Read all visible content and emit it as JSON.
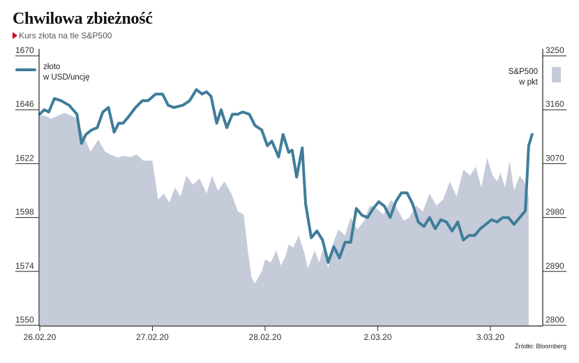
{
  "header": {
    "title": "Chwilowa zbieżność",
    "subtitle": "Kurs złota na tle S&P500"
  },
  "source": "Źródło: Bloomberg",
  "colors": {
    "gold_line": "#3f7d99",
    "sp500_area": "#c5cbd9",
    "subtitle_marker": "#d0021b"
  },
  "chart_data": {
    "type": "line",
    "title": "Chwilowa zbieżność",
    "subtitle": "Kurs złota na tle S&P500",
    "x_tick_labels": [
      "26.02.20",
      "27.02.20",
      "28.02.20",
      "2.03.20",
      "3.03.20"
    ],
    "left_axis": {
      "label": "złoto w USD/uncję",
      "ylim": [
        1550,
        1670
      ],
      "ticks": [
        1550,
        1574,
        1598,
        1622,
        1646,
        1670
      ]
    },
    "right_axis": {
      "label": "S&P500 w pkt",
      "ylim": [
        2800,
        3250
      ],
      "ticks": [
        2800,
        2890,
        2980,
        3070,
        3160,
        3250
      ]
    },
    "legend": {
      "gold_line_label_1": "złoto",
      "gold_line_label_2": "w USD/uncję",
      "sp500_label_1": "S&P500",
      "sp500_label_2": "w pkt"
    },
    "series": [
      {
        "name": "złoto w USD/uncję",
        "type": "line",
        "axis": "left",
        "x_day_position": [
          0.0,
          0.04,
          0.08,
          0.13,
          0.19,
          0.26,
          0.33,
          0.37,
          0.41,
          0.46,
          0.51,
          0.56,
          0.61,
          0.66,
          0.7,
          0.74,
          0.79,
          0.85,
          0.91,
          0.96,
          1.03,
          1.09,
          1.14,
          1.19,
          1.27,
          1.33,
          1.39,
          1.44,
          1.48,
          1.52,
          1.57,
          1.61,
          1.66,
          1.71,
          1.76,
          1.8,
          1.86,
          1.91,
          1.97,
          2.02,
          2.06,
          2.12,
          2.16,
          2.21,
          2.24,
          2.28,
          2.33,
          2.36,
          2.41,
          2.46,
          2.51,
          2.56,
          2.61,
          2.66,
          2.71,
          2.76,
          2.81,
          2.86,
          2.91,
          2.96,
          3.01,
          3.06,
          3.11,
          3.16,
          3.21,
          3.26,
          3.31,
          3.36,
          3.41,
          3.46,
          3.51,
          3.56,
          3.61,
          3.66,
          3.71,
          3.76,
          3.81,
          3.86,
          3.91,
          3.96,
          4.01,
          4.06,
          4.11,
          4.16,
          4.21,
          4.26,
          4.31,
          4.34,
          4.37
        ],
        "values": [
          1644,
          1646,
          1645,
          1651,
          1650,
          1648,
          1644,
          1631,
          1635,
          1637,
          1638,
          1645,
          1647,
          1636,
          1640,
          1640,
          1643,
          1647,
          1650,
          1650,
          1653,
          1653,
          1648,
          1647,
          1648,
          1650,
          1655,
          1653,
          1654,
          1652,
          1640,
          1646,
          1638,
          1644,
          1644,
          1645,
          1644,
          1639,
          1637,
          1630,
          1632,
          1625,
          1635,
          1627,
          1628,
          1616,
          1629,
          1604,
          1589,
          1592,
          1588,
          1578,
          1585,
          1580,
          1587,
          1587,
          1602,
          1599,
          1598,
          1602,
          1605,
          1603,
          1598,
          1605,
          1609,
          1609,
          1604,
          1596,
          1594,
          1598,
          1593,
          1597,
          1596,
          1592,
          1596,
          1588,
          1590,
          1590,
          1593,
          1595,
          1597,
          1596,
          1598,
          1598,
          1595,
          1598,
          1601,
          1630,
          1635
        ]
      },
      {
        "name": "S&P500 w pkt",
        "type": "area",
        "axis": "right",
        "x_day_position": [
          0.0,
          0.05,
          0.1,
          0.16,
          0.22,
          0.28,
          0.33,
          0.38,
          0.45,
          0.52,
          0.58,
          0.63,
          0.69,
          0.75,
          0.8,
          0.86,
          0.92,
          1.0,
          1.05,
          1.1,
          1.15,
          1.2,
          1.25,
          1.3,
          1.36,
          1.42,
          1.48,
          1.53,
          1.58,
          1.64,
          1.7,
          1.76,
          1.81,
          1.85,
          1.88,
          1.91,
          1.94,
          1.97,
          2.0,
          2.05,
          2.1,
          2.14,
          2.18,
          2.21,
          2.25,
          2.3,
          2.35,
          2.38,
          2.41,
          2.44,
          2.48,
          2.52,
          2.56,
          2.6,
          2.65,
          2.71,
          2.76,
          2.82,
          2.88,
          2.93,
          2.99,
          3.05,
          3.12,
          3.17,
          3.23,
          3.28,
          3.34,
          3.4,
          3.46,
          3.52,
          3.58,
          3.64,
          3.7,
          3.76,
          3.82,
          3.87,
          3.92,
          3.97,
          4.02,
          4.06,
          4.09,
          4.13,
          4.17,
          4.21,
          4.26,
          4.3,
          4.34
        ],
        "values": [
          3150,
          3150,
          3145,
          3150,
          3155,
          3150,
          3145,
          3120,
          3090,
          3110,
          3090,
          3085,
          3080,
          3083,
          3081,
          3085,
          3075,
          3075,
          3010,
          3020,
          3005,
          3030,
          3015,
          3050,
          3035,
          3045,
          3020,
          3050,
          3025,
          3040,
          3020,
          2990,
          2985,
          2920,
          2880,
          2870,
          2880,
          2890,
          2910,
          2905,
          2925,
          2900,
          2915,
          2935,
          2930,
          2950,
          2920,
          2895,
          2910,
          2925,
          2905,
          2930,
          2895,
          2935,
          2960,
          2950,
          2980,
          2960,
          2975,
          3000,
          2995,
          2985,
          3010,
          2995,
          2975,
          2980,
          3000,
          2990,
          3020,
          3000,
          3010,
          3040,
          3015,
          3060,
          3050,
          3065,
          3030,
          3080,
          3050,
          3040,
          3055,
          3030,
          3075,
          3025,
          3050,
          3040,
          3015
        ]
      }
    ]
  }
}
